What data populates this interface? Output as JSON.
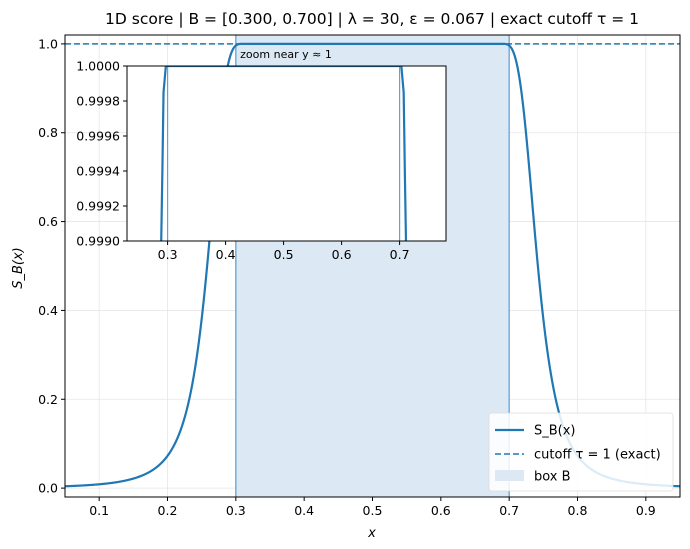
{
  "chart_data": {
    "type": "line",
    "title": "1D score  |  B = [0.300, 0.700]  |  λ = 30, ε = 0.067  |  exact cutoff τ = 1",
    "xlabel": "x",
    "ylabel": "S_B(x)",
    "xlim": [
      0.05,
      0.95
    ],
    "ylim": [
      -0.02,
      1.02
    ],
    "xticks": [
      "0.1",
      "0.2",
      "0.3",
      "0.4",
      "0.5",
      "0.6",
      "0.7",
      "0.8",
      "0.9"
    ],
    "yticks": [
      "0.0",
      "0.2",
      "0.4",
      "0.6",
      "0.8",
      "1.0"
    ],
    "grid": true,
    "legend_position": "lower-right",
    "colors": {
      "curve": "#1f77b4",
      "box_fill": "#dce9f4",
      "box_edge": "#5fa3d4",
      "axes": "#000000",
      "grid": "#e6e6e6"
    },
    "box": {
      "x_min": 0.3,
      "x_max": 0.7
    },
    "cutoff": {
      "value": 1.0
    },
    "curve_function": {
      "lambda": 30,
      "epsilon": 0.067,
      "box": [
        0.3,
        0.7
      ]
    },
    "series": [
      {
        "name": "S_B(x)",
        "style": "solid"
      },
      {
        "name": "cutoff τ = 1 (exact)",
        "style": "dashed"
      },
      {
        "name": "box B",
        "style": "fill"
      }
    ],
    "inset": {
      "title": "zoom near y ≈ 1",
      "xlim": [
        0.23,
        0.78
      ],
      "ylim": [
        0.999,
        1.0
      ],
      "xticks": [
        "0.3",
        "0.4",
        "0.5",
        "0.6",
        "0.7"
      ],
      "yticks": [
        "0.9990",
        "0.9992",
        "0.9994",
        "0.9996",
        "0.9998",
        "1.0000"
      ]
    }
  }
}
